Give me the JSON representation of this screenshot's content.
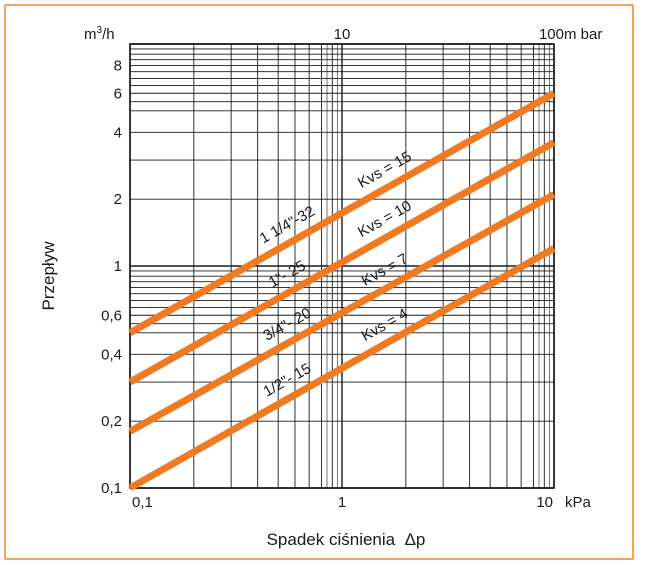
{
  "colors": {
    "frame": "#f0a45a",
    "series": "#f07a22",
    "grid": "#1a1a1a",
    "background": "#ffffff"
  },
  "chart_data": {
    "type": "line",
    "scale": {
      "x": "log",
      "y": "log"
    },
    "grid": true,
    "xlabel": "Spadek ciśnienia  Δp",
    "ylabel": "Przepływ",
    "y_unit": "m³/h",
    "x_unit": "kPa",
    "x_unit_top": "m bar",
    "xlim": [
      0.1,
      10
    ],
    "ylim": [
      0.1,
      10
    ],
    "x_ticks_bottom": [
      {
        "value": 0.1,
        "label": "0,1"
      },
      {
        "value": 1,
        "label": "1"
      },
      {
        "value": 10,
        "label": "10"
      }
    ],
    "x_ticks_top": [
      {
        "value": 1,
        "label": "10"
      },
      {
        "value": 10,
        "label": "100"
      }
    ],
    "y_ticks": [
      {
        "value": 0.1,
        "label": "0,1"
      },
      {
        "value": 0.2,
        "label": "0,2"
      },
      {
        "value": 0.4,
        "label": "0,4"
      },
      {
        "value": 0.6,
        "label": "0,6"
      },
      {
        "value": 1,
        "label": "1"
      },
      {
        "value": 2,
        "label": "2"
      },
      {
        "value": 4,
        "label": "4"
      },
      {
        "value": 6,
        "label": "6"
      },
      {
        "value": 8,
        "label": "8"
      }
    ],
    "series": [
      {
        "name": "1/2\"- 15",
        "kvs_label": "Kvs = 4",
        "x": [
          0.1,
          10
        ],
        "y": [
          0.1,
          1.2
        ]
      },
      {
        "name": "3/4\"- 20",
        "kvs_label": "Kvs = 7",
        "x": [
          0.1,
          10
        ],
        "y": [
          0.18,
          2.1
        ]
      },
      {
        "name": "1\"- 25",
        "kvs_label": "Kvs = 10",
        "x": [
          0.1,
          10
        ],
        "y": [
          0.3,
          3.6
        ]
      },
      {
        "name": "1 1/4\"-32",
        "kvs_label": "Kvs = 15",
        "x": [
          0.1,
          10
        ],
        "y": [
          0.5,
          6.0
        ]
      }
    ]
  }
}
